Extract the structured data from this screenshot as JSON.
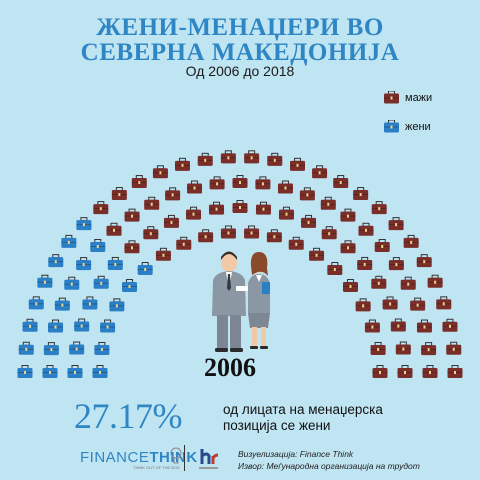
{
  "title_line1": "ЖЕНИ-МЕНАЏЕРИ ВО",
  "title_line2": "СЕВЕРНА МАКЕДОНИЈА",
  "subtitle": "Од 2006 до 2018",
  "legend": {
    "men": {
      "label": "мажи",
      "color": "#7a2e2a"
    },
    "women": {
      "label": "жени",
      "color": "#2a7fc6"
    }
  },
  "icons": {
    "briefcase": "briefcase-icon",
    "people": "businessman-businesswoman-icon"
  },
  "year": "2006",
  "stat": {
    "percent": "27.17%",
    "line1": "од лицата на менаџерска",
    "line2": "позиција се жени"
  },
  "footer": {
    "logo_part1": "FINANCE",
    "logo_part2": "THINK",
    "logo_tagline": "THINK OUT OF THE BOX",
    "credit1": "Визуелизација: Finance Think",
    "credit2": "Извор: Меѓународна организација на трудот"
  },
  "counts": {
    "women": 27,
    "men": 73
  }
}
